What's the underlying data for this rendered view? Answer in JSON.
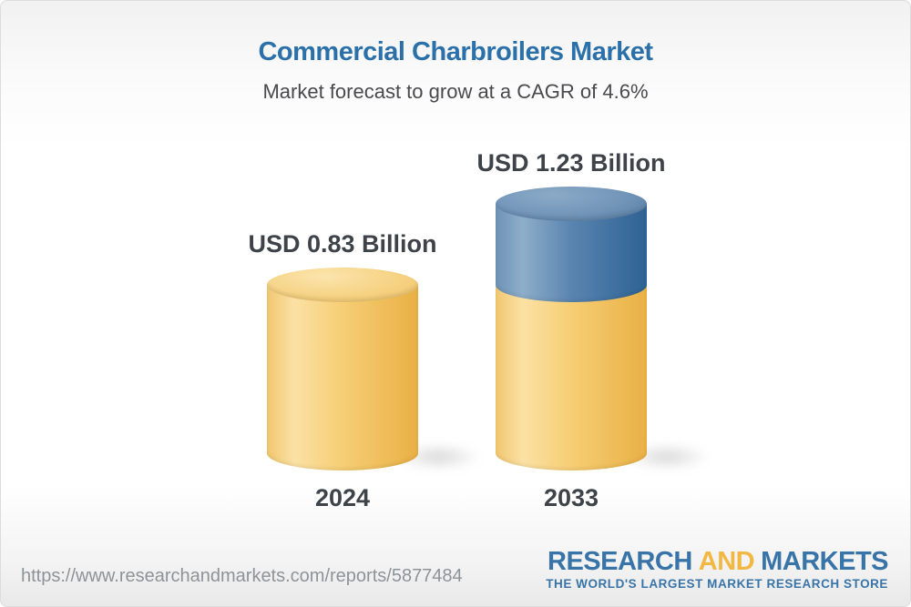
{
  "page": {
    "title": "Commercial Charbroilers Market",
    "subtitle": "Market forecast to grow at a CAGR of 4.6%"
  },
  "footer": {
    "source_url": "https://www.researchandmarkets.com/reports/5877484",
    "logo": {
      "research": "RESEARCH",
      "and": "AND",
      "markets": "MARKETS",
      "tagline": "THE WORLD'S LARGEST MARKET RESEARCH STORE"
    }
  },
  "chart_data": {
    "type": "bar",
    "subtype": "3d-cylinder",
    "title": "Commercial Charbroilers Market",
    "subtitle": "Market forecast to grow at a CAGR of 4.6%",
    "cagr_percent": 4.6,
    "unit": "USD Billion",
    "categories": [
      "2024",
      "2033"
    ],
    "values": [
      0.83,
      1.23
    ],
    "value_labels": [
      "USD 0.83 Billion",
      "USD 1.23 Billion"
    ],
    "legend": "none",
    "bars": [
      {
        "category": "2024",
        "value": 0.83,
        "label": "USD 0.83 Billion",
        "segments": [
          {
            "name": "base-market",
            "value": 0.83,
            "palette": "gold"
          }
        ]
      },
      {
        "category": "2033",
        "value": 1.23,
        "label": "USD 1.23 Billion",
        "segments": [
          {
            "name": "base-market",
            "value": 0.83,
            "palette": "gold"
          },
          {
            "name": "forecast-growth",
            "value": 0.4,
            "palette": "blue"
          }
        ]
      }
    ],
    "palettes": {
      "gold": {
        "body": [
          "#F1C76F",
          "#FBE1A5",
          "#F6CE74",
          "#E9B045"
        ],
        "top": [
          "#FBE4AD",
          "#F6D384",
          "#EFC264"
        ]
      },
      "blue": {
        "body": [
          "#6E93B7",
          "#8EAECA",
          "#5A84B0",
          "#2D6394"
        ],
        "top": [
          "#8CAAC7",
          "#7195B9",
          "#54799F"
        ]
      }
    },
    "colors": {
      "title_text": "#2B70A9",
      "subtitle_text": "#4A4A4E",
      "label_text": "#3E434A",
      "url_text": "#8E9398",
      "logo_blue": "#3974A9",
      "logo_gold": "#F2B844"
    }
  }
}
